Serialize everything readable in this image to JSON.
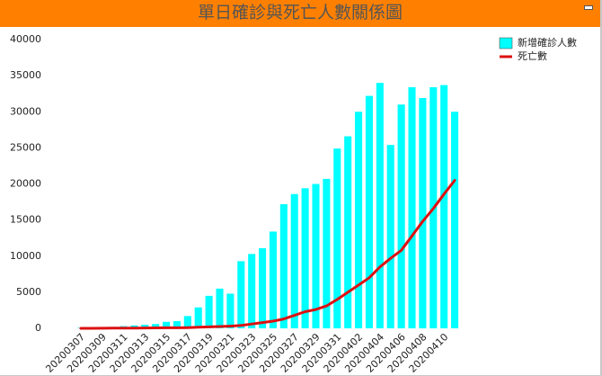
{
  "chart_data": {
    "type": "bar",
    "title": "單日確診與死亡人數關係圖",
    "categories": [
      "20200307",
      null,
      "20200309",
      null,
      "20200311",
      null,
      "20200313",
      null,
      "20200315",
      null,
      "20200317",
      null,
      "20200319",
      null,
      "20200321",
      null,
      "20200323",
      null,
      "20200325",
      null,
      "20200327",
      null,
      "20200329",
      null,
      "20200331",
      null,
      "20200402",
      null,
      "20200404",
      null,
      "20200406",
      null,
      "20200408",
      null,
      "20200410",
      null
    ],
    "series": [
      {
        "name": "新增確診人數",
        "type": "bar",
        "color": "#00ffff",
        "values": [
          60,
          100,
          100,
          200,
          300,
          400,
          500,
          600,
          900,
          1000,
          1700,
          2900,
          4500,
          5500,
          4800,
          9300,
          10300,
          11100,
          13400,
          17200,
          18600,
          19400,
          20000,
          20700,
          24900,
          26600,
          30000,
          32200,
          34000,
          25400,
          31000,
          33400,
          31900,
          33400,
          33700,
          30000
        ]
      },
      {
        "name": "死亡數",
        "type": "line",
        "color": "#dd1111",
        "values": [
          0,
          0,
          10,
          20,
          30,
          40,
          50,
          60,
          70,
          80,
          100,
          150,
          200,
          250,
          300,
          400,
          600,
          800,
          1000,
          1300,
          1800,
          2300,
          2600,
          3100,
          4000,
          5000,
          6000,
          7000,
          8500,
          9700,
          10800,
          12800,
          14800,
          16600,
          18600,
          20500
        ]
      }
    ],
    "ylim": [
      0,
      40000
    ],
    "yticks": [
      0,
      5000,
      10000,
      15000,
      20000,
      25000,
      30000,
      35000,
      40000
    ],
    "grid": false,
    "legend": "upper right"
  }
}
